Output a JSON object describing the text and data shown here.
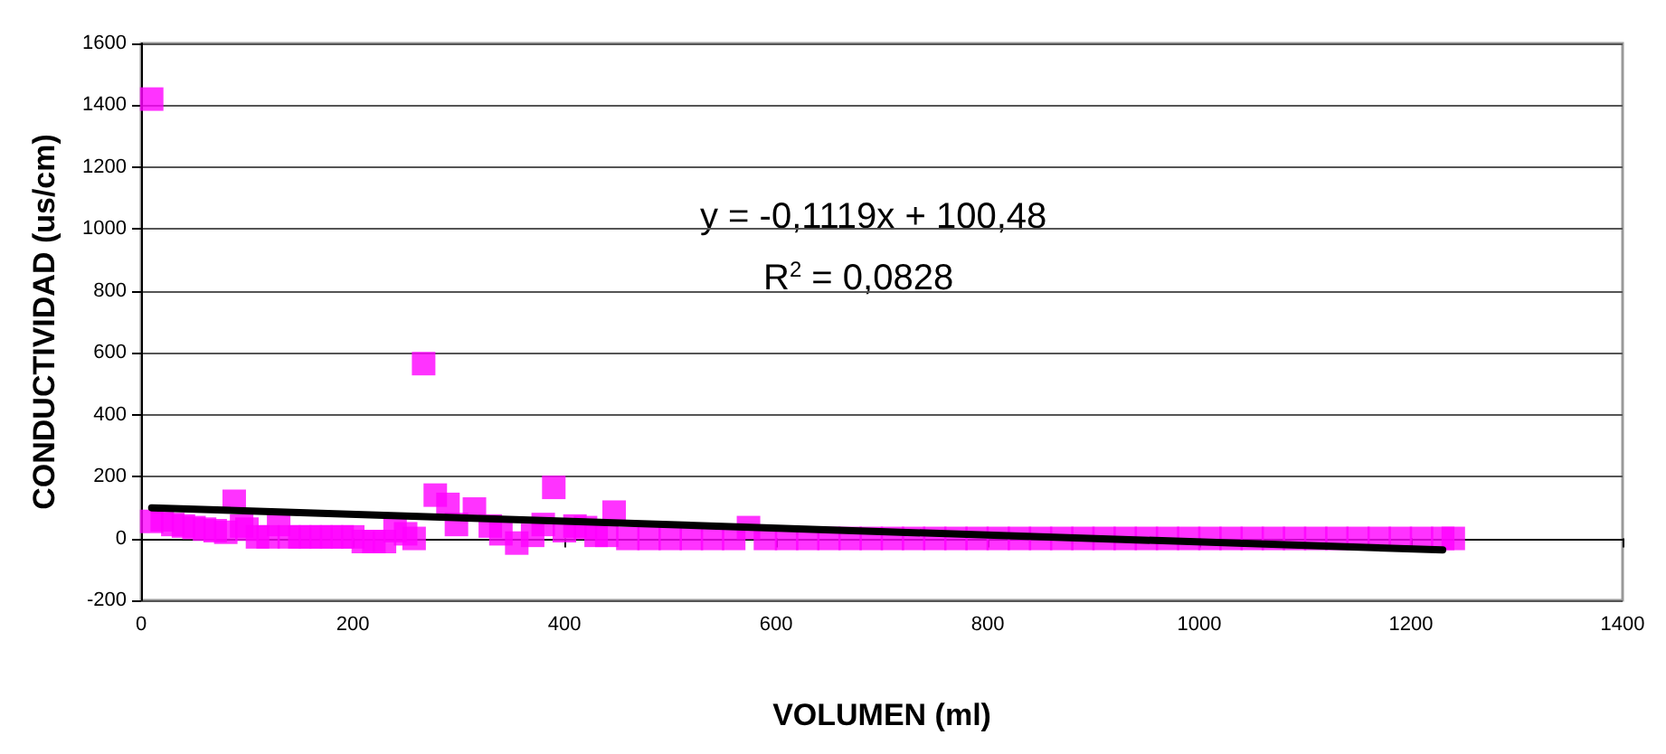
{
  "chart_data": {
    "type": "scatter",
    "xlabel": "VOLUMEN (ml)",
    "ylabel": "CONDUCTIVIDAD (us/cm)",
    "annotations": [
      "y = -0,1119x + 100,48",
      "R$^{2}$ = 0,0828"
    ],
    "xlim": [
      0,
      1400
    ],
    "xticks": [
      0,
      200,
      400,
      600,
      800,
      1000,
      1200,
      1400
    ],
    "ylim": [
      -200,
      1600
    ],
    "yticks": [
      -200,
      0,
      200,
      400,
      600,
      800,
      1000,
      1200,
      1400,
      1600
    ],
    "grid": "y",
    "marker": "square",
    "series": [
      {
        "color": "#ff00ff",
        "x": [
          10,
          10,
          20,
          30,
          40,
          50,
          60,
          70,
          80,
          88,
          95,
          100,
          110,
          120,
          130,
          140,
          150,
          160,
          170,
          180,
          190,
          200,
          210,
          220,
          230,
          240,
          250,
          258,
          267,
          278,
          290,
          298,
          315,
          330,
          340,
          355,
          370,
          380,
          390,
          400,
          410,
          420,
          430,
          440,
          447,
          460,
          480,
          500,
          520,
          540,
          560,
          574,
          590,
          610,
          630,
          650,
          670,
          690,
          710,
          730,
          750,
          770,
          790,
          810,
          830,
          850,
          870,
          890,
          910,
          930,
          950,
          970,
          990,
          1010,
          1030,
          1050,
          1070,
          1090,
          1110,
          1130,
          1150,
          1170,
          1190,
          1210,
          1230,
          1240
        ],
        "values": [
          1420,
          55,
          60,
          45,
          40,
          35,
          30,
          25,
          20,
          120,
          40,
          30,
          5,
          5,
          45,
          5,
          5,
          5,
          5,
          5,
          5,
          5,
          -10,
          -10,
          -10,
          25,
          15,
          0,
          565,
          140,
          110,
          45,
          95,
          40,
          15,
          -15,
          10,
          45,
          165,
          25,
          40,
          35,
          10,
          10,
          85,
          0,
          0,
          0,
          0,
          0,
          0,
          35,
          0,
          0,
          0,
          0,
          0,
          0,
          0,
          0,
          0,
          0,
          0,
          0,
          0,
          0,
          0,
          0,
          0,
          0,
          0,
          0,
          0,
          0,
          0,
          0,
          0,
          0,
          0,
          0,
          0,
          0,
          0,
          0,
          0,
          0
        ]
      },
      {
        "type": "line",
        "color": "#000000",
        "marker": "none",
        "x": [
          10,
          1230
        ],
        "values": [
          99,
          -37
        ]
      }
    ]
  }
}
